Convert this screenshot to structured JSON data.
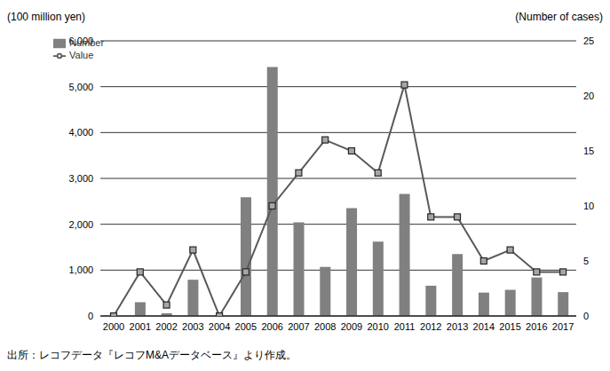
{
  "chart_data": {
    "type": "bar",
    "ylabel": "(100 million yen)",
    "y2label": "(Number of cases)",
    "source": "出所：レコフデータ『レコフM&Aデータベース』より作成。",
    "categories": [
      "2000",
      "2001",
      "2002",
      "2003",
      "2004",
      "2005",
      "2006",
      "2007",
      "2008",
      "2009",
      "2010",
      "2011",
      "2012",
      "2013",
      "2014",
      "2015",
      "2016",
      "2017"
    ],
    "series": [
      {
        "name": "Number",
        "type": "bar",
        "color": "#808080",
        "values": [
          0,
          300,
          60,
          790,
          0,
          2590,
          5430,
          2040,
          1070,
          2350,
          1620,
          2660,
          660,
          1350,
          510,
          570,
          840,
          520
        ]
      },
      {
        "name": "Value",
        "type": "line",
        "color": "#595959",
        "marker": "square",
        "axis": "y2",
        "values": [
          0,
          4,
          1,
          6,
          0,
          4,
          10,
          13,
          16,
          15,
          13,
          21,
          9,
          9,
          5,
          6,
          4,
          4
        ]
      }
    ],
    "ylim": [
      0,
      6000
    ],
    "yticks": [
      0,
      {
        "value": 1000,
        "label": "1,000"
      },
      {
        "value": 2000,
        "label": "2,000"
      },
      {
        "value": 3000,
        "label": "3,000"
      },
      {
        "value": 4000,
        "label": "4,000"
      },
      {
        "value": 5000,
        "label": "5,000"
      },
      {
        "value": 6000,
        "label": "6,000"
      }
    ],
    "y2lim": [
      0,
      25
    ],
    "y2ticks": [
      0,
      5,
      10,
      15,
      20,
      25
    ],
    "grid": true,
    "legend": "upper left"
  }
}
